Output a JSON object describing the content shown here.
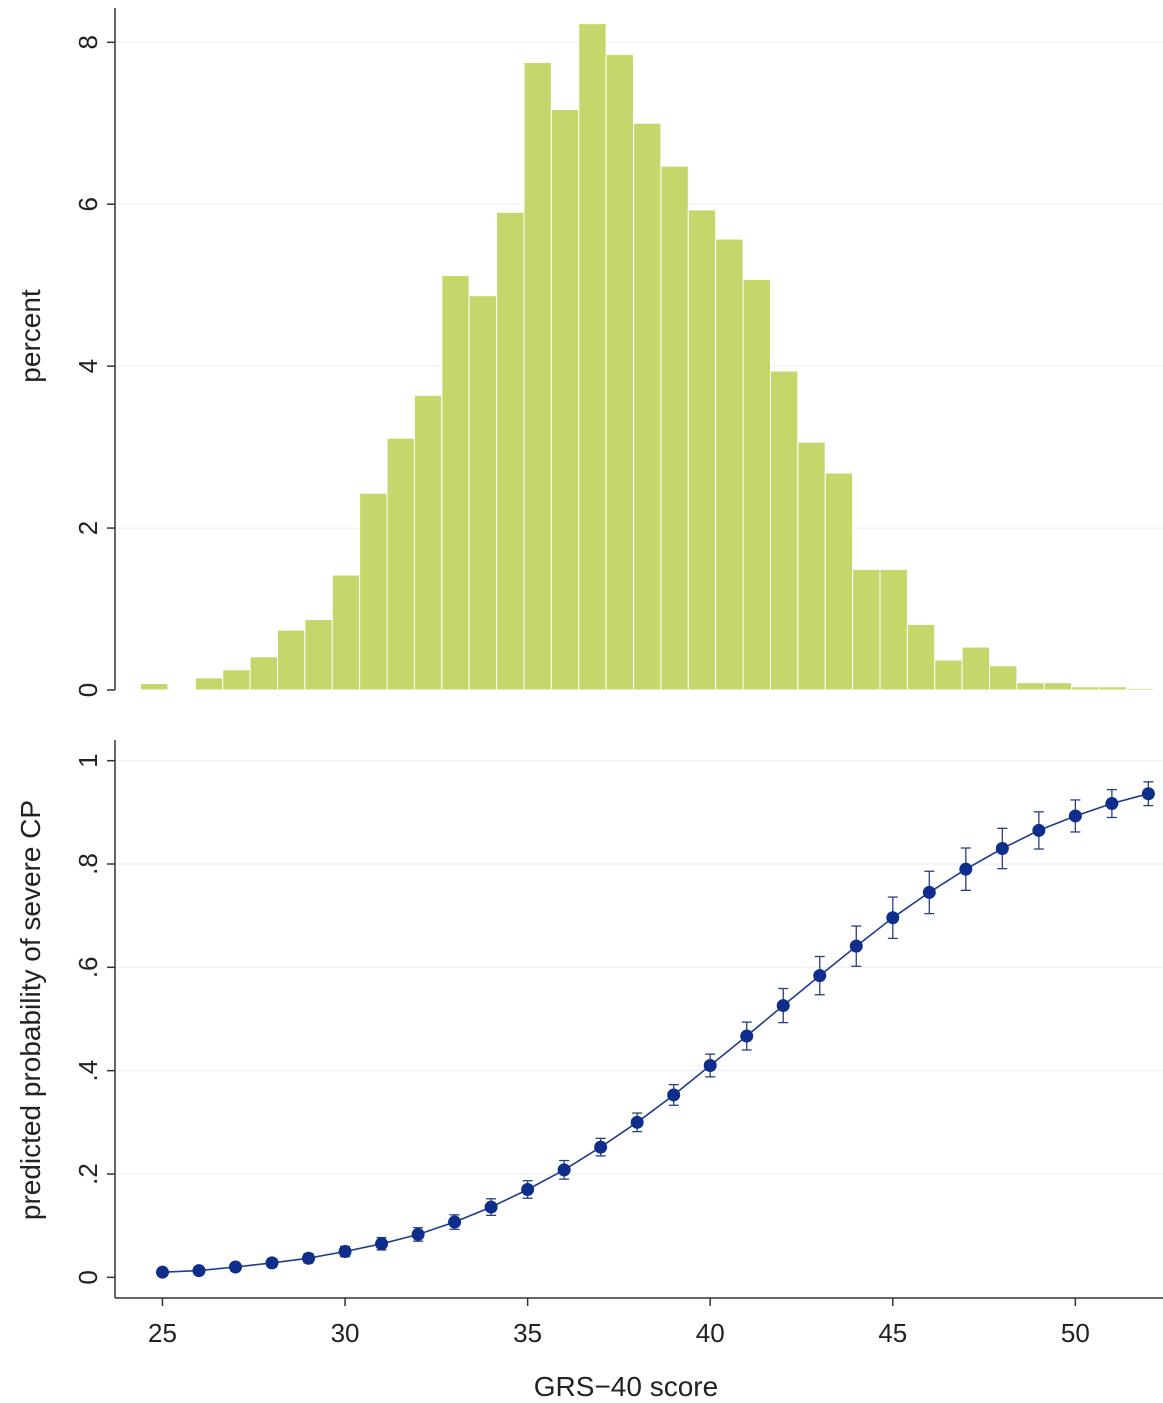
{
  "chart_data": [
    {
      "type": "bar",
      "subtype": "histogram",
      "ylabel": "percent",
      "xlabel": "",
      "ylim": [
        0,
        8.3
      ],
      "xlim": [
        23.7,
        52.4
      ],
      "yticks": [
        0,
        2,
        4,
        6,
        8
      ],
      "ytick_labels": [
        "0",
        "2",
        "4",
        "6",
        "8"
      ],
      "grid": true,
      "bar_color": "#c5d66a",
      "bin_width": 0.75,
      "bins_start": [
        24.4,
        25.15,
        25.9,
        26.65,
        27.4,
        28.15,
        28.9,
        29.65,
        30.4,
        31.15,
        31.9,
        32.65,
        33.4,
        34.15,
        34.9,
        35.65,
        36.4,
        37.15,
        37.9,
        38.65,
        39.4,
        40.15,
        40.9,
        41.65,
        42.4,
        43.15,
        43.9,
        44.65,
        45.4,
        46.15,
        46.9,
        47.65,
        48.4,
        49.15,
        49.9,
        50.65,
        51.4
      ],
      "values": [
        0.08,
        0.0,
        0.15,
        0.25,
        0.41,
        0.74,
        0.87,
        1.42,
        2.43,
        3.11,
        3.64,
        5.12,
        4.87,
        5.9,
        7.75,
        7.17,
        8.23,
        7.85,
        7.0,
        6.47,
        5.93,
        5.57,
        5.07,
        3.94,
        3.06,
        2.68,
        1.49,
        1.49,
        0.81,
        0.37,
        0.53,
        0.3,
        0.09,
        0.09,
        0.04,
        0.04,
        0.02
      ]
    },
    {
      "type": "line",
      "subtype": "line with markers and 95% CI error bars",
      "xlabel": "GRS−40 score",
      "ylabel": "predicted probability of severe CP",
      "xlim": [
        23.7,
        52.4
      ],
      "ylim": [
        -0.04,
        1.04
      ],
      "xticks": [
        25,
        30,
        35,
        40,
        45,
        50
      ],
      "xtick_labels": [
        "25",
        "30",
        "35",
        "40",
        "45",
        "50"
      ],
      "yticks": [
        0,
        0.2,
        0.4,
        0.6,
        0.8,
        1
      ],
      "ytick_labels": [
        "0",
        ".2",
        ".4",
        ".6",
        ".8",
        "1"
      ],
      "grid": true,
      "line_color": "#1f3c8c",
      "marker_color": "#0f2d8a",
      "x": [
        25,
        26,
        27,
        28,
        29,
        30,
        31,
        32,
        33,
        34,
        35,
        36,
        37,
        38,
        39,
        40,
        41,
        42,
        43,
        44,
        45,
        46,
        47,
        48,
        49,
        50,
        51,
        52
      ],
      "y": [
        0.01,
        0.013,
        0.02,
        0.028,
        0.037,
        0.05,
        0.065,
        0.083,
        0.107,
        0.136,
        0.17,
        0.208,
        0.252,
        0.3,
        0.353,
        0.41,
        0.467,
        0.526,
        0.584,
        0.641,
        0.696,
        0.745,
        0.79,
        0.83,
        0.865,
        0.893,
        0.917,
        0.936
      ],
      "y_low": [
        0.005,
        0.007,
        0.013,
        0.02,
        0.028,
        0.04,
        0.053,
        0.07,
        0.093,
        0.12,
        0.153,
        0.19,
        0.235,
        0.282,
        0.333,
        0.388,
        0.44,
        0.493,
        0.547,
        0.602,
        0.656,
        0.704,
        0.749,
        0.791,
        0.829,
        0.862,
        0.89,
        0.913
      ],
      "y_high": [
        0.015,
        0.02,
        0.027,
        0.036,
        0.046,
        0.06,
        0.077,
        0.096,
        0.121,
        0.152,
        0.187,
        0.226,
        0.269,
        0.318,
        0.373,
        0.432,
        0.494,
        0.559,
        0.621,
        0.68,
        0.736,
        0.786,
        0.831,
        0.869,
        0.901,
        0.924,
        0.944,
        0.959
      ]
    }
  ]
}
